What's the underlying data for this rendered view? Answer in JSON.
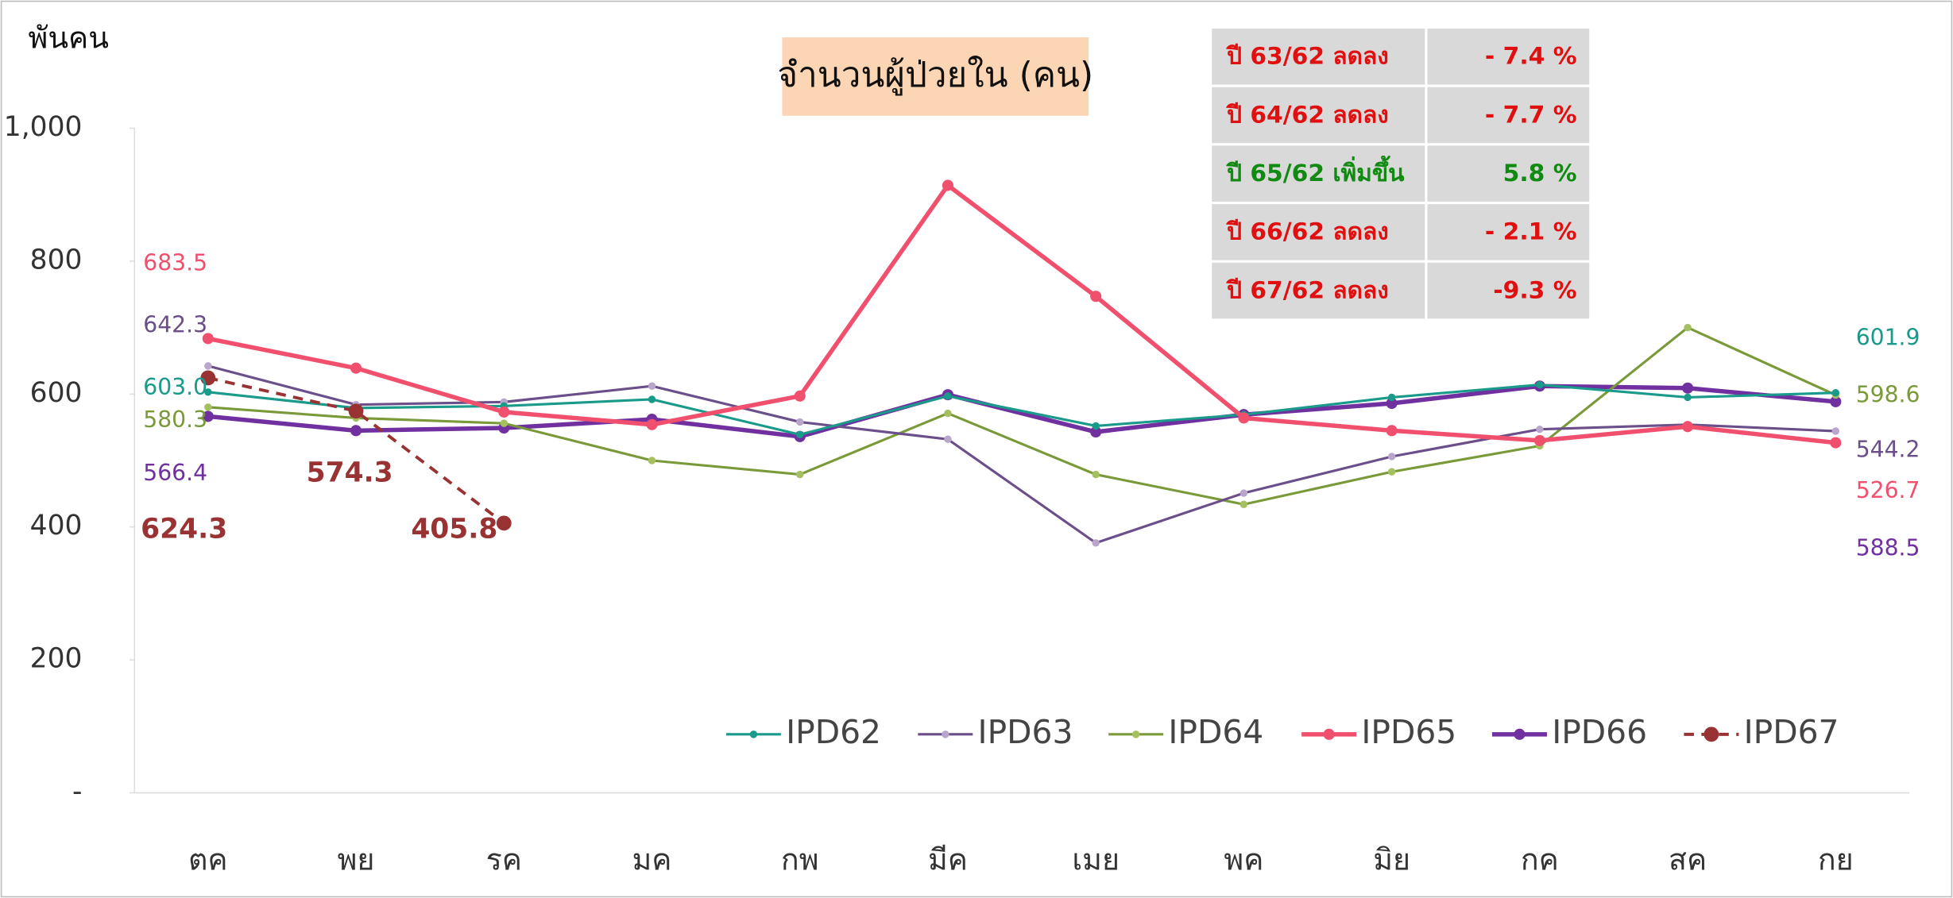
{
  "chart_data": {
    "type": "line",
    "title": "จำนวนผู้ป่วยใน (คน)",
    "y_axis_label": "พันคน",
    "categories": [
      "ตค",
      "พย",
      "รค",
      "มค",
      "กพ",
      "มีค",
      "เมย",
      "พค",
      "มิย",
      "กค",
      "สค",
      "กย"
    ],
    "ylim": [
      0,
      1000
    ],
    "yticks": [
      {
        "value": 0,
        "label": "-"
      },
      200,
      400,
      600,
      800,
      {
        "value": 1000,
        "label": "1,000"
      }
    ],
    "series": [
      {
        "name": "IPD62",
        "color": "#1a9a8a",
        "values": [
          603.0,
          579,
          582,
          592,
          539,
          597,
          552,
          569,
          595,
          614,
          595,
          601.9
        ],
        "value_labels": [
          "603.0",
          null,
          null,
          null,
          null,
          null,
          null,
          null,
          null,
          null,
          null,
          "601.9"
        ]
      },
      {
        "name": "IPD63",
        "color": "#6a4f8a",
        "values": [
          642.3,
          584,
          588,
          612,
          558,
          532,
          376,
          451,
          506,
          547,
          554,
          544.2
        ],
        "value_labels": [
          "642.3",
          null,
          null,
          null,
          null,
          null,
          null,
          null,
          null,
          null,
          null,
          "544.2"
        ]
      },
      {
        "name": "IPD64",
        "color": "#7a9a3a",
        "values": [
          580.3,
          564,
          556,
          500,
          479,
          571,
          479,
          434,
          483,
          522,
          700,
          598.6
        ],
        "value_labels": [
          "580.3",
          null,
          null,
          null,
          null,
          null,
          null,
          null,
          null,
          null,
          null,
          "598.6"
        ]
      },
      {
        "name": "IPD65",
        "color": "#f0506e",
        "values": [
          683.5,
          639,
          573,
          554,
          597,
          914,
          747,
          564,
          545,
          530,
          551,
          526.7
        ],
        "value_labels": [
          "683.5",
          null,
          null,
          null,
          null,
          null,
          null,
          null,
          null,
          null,
          null,
          "526.7"
        ]
      },
      {
        "name": "IPD66",
        "color": "#7030a0",
        "values": [
          566.4,
          545,
          549,
          562,
          536,
          599,
          543,
          569,
          586,
          612,
          609,
          588.5
        ],
        "value_labels": [
          "566.4",
          null,
          null,
          null,
          null,
          null,
          null,
          null,
          null,
          null,
          null,
          "588.5"
        ]
      },
      {
        "name": "IPD67",
        "color": "#993333",
        "line_style": "dashed",
        "values": [
          624.3,
          574.3,
          405.8,
          null,
          null,
          null,
          null,
          null,
          null,
          null,
          null,
          null
        ],
        "value_labels": [
          "624.3",
          "574.3",
          "405.8",
          null,
          null,
          null,
          null,
          null,
          null,
          null,
          null,
          null
        ]
      }
    ],
    "summary": [
      {
        "label": "ปี 63/62 ลดลง",
        "value": "- 7.4 %",
        "color": "#e01010"
      },
      {
        "label": "ปี 64/62 ลดลง",
        "value": "- 7.7 %",
        "color": "#e01010"
      },
      {
        "label": "ปี 65/62 เพิ่มขึ้น",
        "value": "5.8 %",
        "color": "#108a10"
      },
      {
        "label": "ปี 66/62 ลดลง",
        "value": "- 2.1 %",
        "color": "#e01010"
      },
      {
        "label": "ปี 67/62 ลดลง",
        "value": "-9.3 %",
        "color": "#e01010"
      }
    ]
  }
}
